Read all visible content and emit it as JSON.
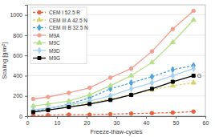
{
  "chart_data": {
    "type": "line",
    "x_label": "Freeze-thaw-cycles",
    "y_label": "Scaling [g/m²]",
    "x": [
      2,
      7,
      14,
      21,
      28,
      35,
      42,
      49,
      56
    ],
    "xlim": [
      0,
      60
    ],
    "xticks": [
      0,
      10,
      20,
      30,
      40,
      50,
      60
    ],
    "ylim": [
      0,
      1100
    ],
    "yticks": [
      0,
      200,
      400,
      600,
      800,
      1000
    ],
    "grid": true,
    "legend": "upper left",
    "series": [
      {
        "name": "CEM I 52.5 R",
        "color": "#e8603c",
        "marker": "circle",
        "line_style": "dashed",
        "values": [
          5,
          10,
          15,
          15,
          20,
          25,
          30,
          35,
          45
        ]
      },
      {
        "name": "CEM III A 42.5 N",
        "color": "#d4d46a",
        "marker": "triangle",
        "line_style": "dashed",
        "values": [
          60,
          80,
          100,
          130,
          170,
          210,
          260,
          300,
          330
        ]
      },
      {
        "name": "CEM III B 32.5 N",
        "color": "#4fa3d8",
        "marker": "diamond",
        "line_style": "dashed",
        "values": [
          50,
          70,
          120,
          180,
          270,
          330,
          390,
          460,
          500
        ]
      },
      {
        "name": "M9A",
        "color": "#f0a090",
        "marker": "circle",
        "line_style": "solid",
        "values": [
          170,
          190,
          230,
          280,
          380,
          470,
          640,
          860,
          1040
        ]
      },
      {
        "name": "M9C",
        "color": "#b8e08c",
        "marker": "triangle",
        "line_style": "solid",
        "values": [
          100,
          120,
          150,
          210,
          300,
          400,
          530,
          730,
          950
        ]
      },
      {
        "name": "M9D",
        "color": "#a8d0f0",
        "marker": "diamond",
        "line_style": "solid",
        "values": [
          60,
          80,
          110,
          150,
          200,
          270,
          330,
          400,
          470
        ]
      },
      {
        "name": "M9G",
        "color": "#000000",
        "marker": "square",
        "line_style": "solid",
        "values": [
          40,
          60,
          90,
          120,
          160,
          210,
          270,
          340,
          400
        ]
      }
    ],
    "annotations": [
      {
        "text": "G",
        "x": 58,
        "y": 400
      }
    ]
  }
}
